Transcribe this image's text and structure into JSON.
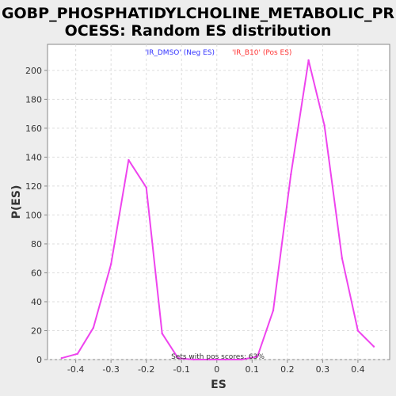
{
  "chart_data": {
    "type": "line",
    "title_lines": [
      "GOBP_PHOSPHATIDYLCHOLINE_METABOLIC_PR",
      "OCESS: Random ES distribution"
    ],
    "xlabel": "ES",
    "ylabel": "P(ES)",
    "xlim": [
      -0.48,
      0.49
    ],
    "ylim": [
      0,
      218
    ],
    "x_ticks": [
      -0.4,
      -0.3,
      -0.2,
      -0.1,
      0.0,
      0.1,
      0.2,
      0.3,
      0.4
    ],
    "x_tick_labels": [
      "-0.4",
      "-0.3",
      "-0.2",
      "-0.1",
      "0",
      "0.1",
      "0.2",
      "0.3",
      "0.4"
    ],
    "y_ticks": [
      0,
      20,
      40,
      60,
      80,
      100,
      120,
      140,
      160,
      180,
      200
    ],
    "y_tick_labels": [
      "0",
      "20",
      "40",
      "60",
      "80",
      "100",
      "120",
      "140",
      "160",
      "180",
      "200"
    ],
    "grid": true,
    "legend": [
      {
        "label": "'IR_DMSO' (Neg ES)",
        "color": "#3333ff"
      },
      {
        "label": "'IR_B10' (Pos ES)",
        "color": "#ff3333"
      }
    ],
    "annotation": "Sets with pos scores: 63%",
    "series": [
      {
        "color": "#ee44ee",
        "x": [
          -0.44,
          -0.395,
          -0.35,
          -0.3,
          -0.25,
          -0.2,
          -0.155,
          -0.11,
          -0.065,
          -0.02,
          0.025,
          0.07,
          0.115,
          0.16,
          0.21,
          0.26,
          0.305,
          0.355,
          0.4,
          0.445
        ],
        "y": [
          1,
          4,
          22,
          66,
          138,
          119,
          18,
          1,
          0,
          0,
          0,
          0,
          2,
          34,
          128,
          207,
          162,
          70,
          20,
          9
        ]
      }
    ]
  }
}
